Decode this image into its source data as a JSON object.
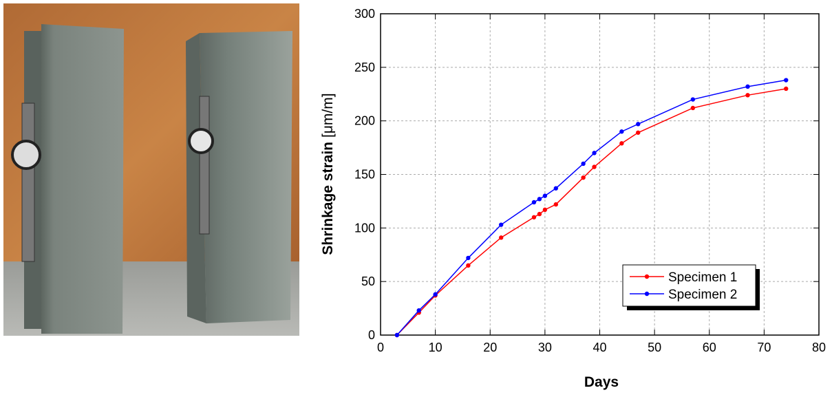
{
  "chart_data": {
    "type": "line",
    "x_label": "Days",
    "y_label": "Shrinkage strain",
    "y_label_unit": "[μm/m]",
    "x": [
      3,
      7,
      10,
      16,
      22,
      28,
      29,
      30,
      32,
      37,
      39,
      44,
      47,
      57,
      67,
      74
    ],
    "series": [
      {
        "name": "Specimen 1",
        "color": "#ff0000",
        "values": [
          0,
          21,
          37,
          65,
          91,
          110,
          113,
          117,
          122,
          147,
          157,
          179,
          189,
          212,
          224,
          230
        ]
      },
      {
        "name": "Specimen 2",
        "color": "#0000ff",
        "values": [
          0,
          23,
          38,
          72,
          103,
          124,
          127,
          130,
          137,
          160,
          170,
          190,
          197,
          220,
          232,
          238
        ]
      }
    ],
    "xlim": [
      0,
      80
    ],
    "xticks": [
      0,
      10,
      20,
      30,
      40,
      50,
      60,
      70,
      80
    ],
    "ylim": [
      0,
      300
    ],
    "yticks": [
      0,
      50,
      100,
      150,
      200,
      250,
      300
    ],
    "grid": true,
    "legend": "lower right"
  }
}
